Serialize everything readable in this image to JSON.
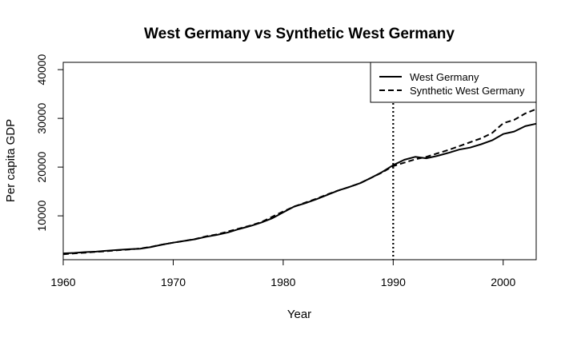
{
  "chart_data": {
    "type": "line",
    "title": "West Germany vs Synthetic West Germany",
    "xlabel": "Year",
    "ylabel": "Per capita GDP",
    "xlim": [
      1960,
      2003
    ],
    "ylim": [
      1000,
      41500
    ],
    "x_ticks": [
      1960,
      1970,
      1980,
      1990,
      2000
    ],
    "y_ticks": [
      10000,
      20000,
      30000,
      40000
    ],
    "grid": false,
    "legend_position": "top-right",
    "treatment_year": 1990,
    "x": [
      1960,
      1961,
      1962,
      1963,
      1964,
      1965,
      1966,
      1967,
      1968,
      1969,
      1970,
      1971,
      1972,
      1973,
      1974,
      1975,
      1976,
      1977,
      1978,
      1979,
      1980,
      1981,
      1982,
      1983,
      1984,
      1985,
      1986,
      1987,
      1988,
      1989,
      1990,
      1991,
      1992,
      1993,
      1994,
      1995,
      1996,
      1997,
      1998,
      1999,
      2000,
      2001,
      2002,
      2003
    ],
    "series": [
      {
        "name": "West Germany",
        "line_style": "solid",
        "values": [
          2300,
          2400,
          2550,
          2650,
          2850,
          3000,
          3150,
          3250,
          3600,
          4100,
          4500,
          4850,
          5200,
          5700,
          6100,
          6600,
          7300,
          7900,
          8600,
          9500,
          10700,
          11900,
          12600,
          13400,
          14300,
          15200,
          15900,
          16700,
          17800,
          19000,
          20400,
          21500,
          22100,
          21800,
          22300,
          22900,
          23600,
          24000,
          24700,
          25500,
          26800,
          27300,
          28400,
          28900
        ]
      },
      {
        "name": "Synthetic West Germany",
        "line_style": "dashed",
        "values": [
          2100,
          2300,
          2450,
          2600,
          2750,
          2950,
          3100,
          3300,
          3650,
          4100,
          4500,
          4850,
          5250,
          5800,
          6200,
          6800,
          7400,
          8000,
          8700,
          9800,
          10900,
          11900,
          12700,
          13500,
          14400,
          15200,
          15900,
          16700,
          17800,
          18900,
          20200,
          20900,
          21600,
          22100,
          22800,
          23500,
          24300,
          25100,
          25900,
          27000,
          29000,
          29700,
          31000,
          31900
        ]
      }
    ]
  }
}
